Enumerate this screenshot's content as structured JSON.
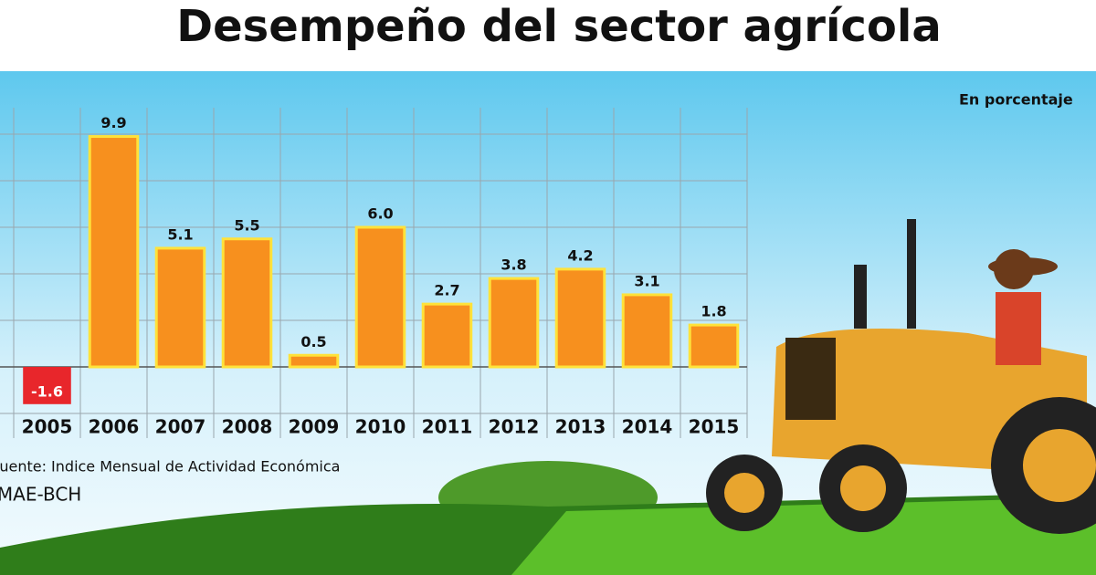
{
  "chart_data": {
    "type": "bar",
    "title": "Desempeño del sector agrícola",
    "subtitle": "En porcentaje",
    "categories": [
      "2005",
      "2006",
      "2007",
      "2008",
      "2009",
      "2010",
      "2011",
      "2012",
      "2013",
      "2014",
      "2015"
    ],
    "values": [
      -1.6,
      9.9,
      5.1,
      5.5,
      0.5,
      6.0,
      2.7,
      3.8,
      4.2,
      3.1,
      1.8
    ],
    "value_labels": [
      "-1.6",
      "9.9",
      "5.1",
      "5.5",
      "0.5",
      "6.0",
      "2.7",
      "3.8",
      "4.2",
      "3.1",
      "1.8"
    ],
    "color": "#f7901e",
    "negative_color": "#e8262b",
    "ylim": [
      -2,
      10
    ],
    "yticks": [
      -2,
      0,
      2,
      4,
      6,
      8,
      10
    ],
    "grid": true,
    "source": [
      "Fuente: Indice Mensual de Actividad Económica",
      "IMAE-BCH"
    ]
  }
}
